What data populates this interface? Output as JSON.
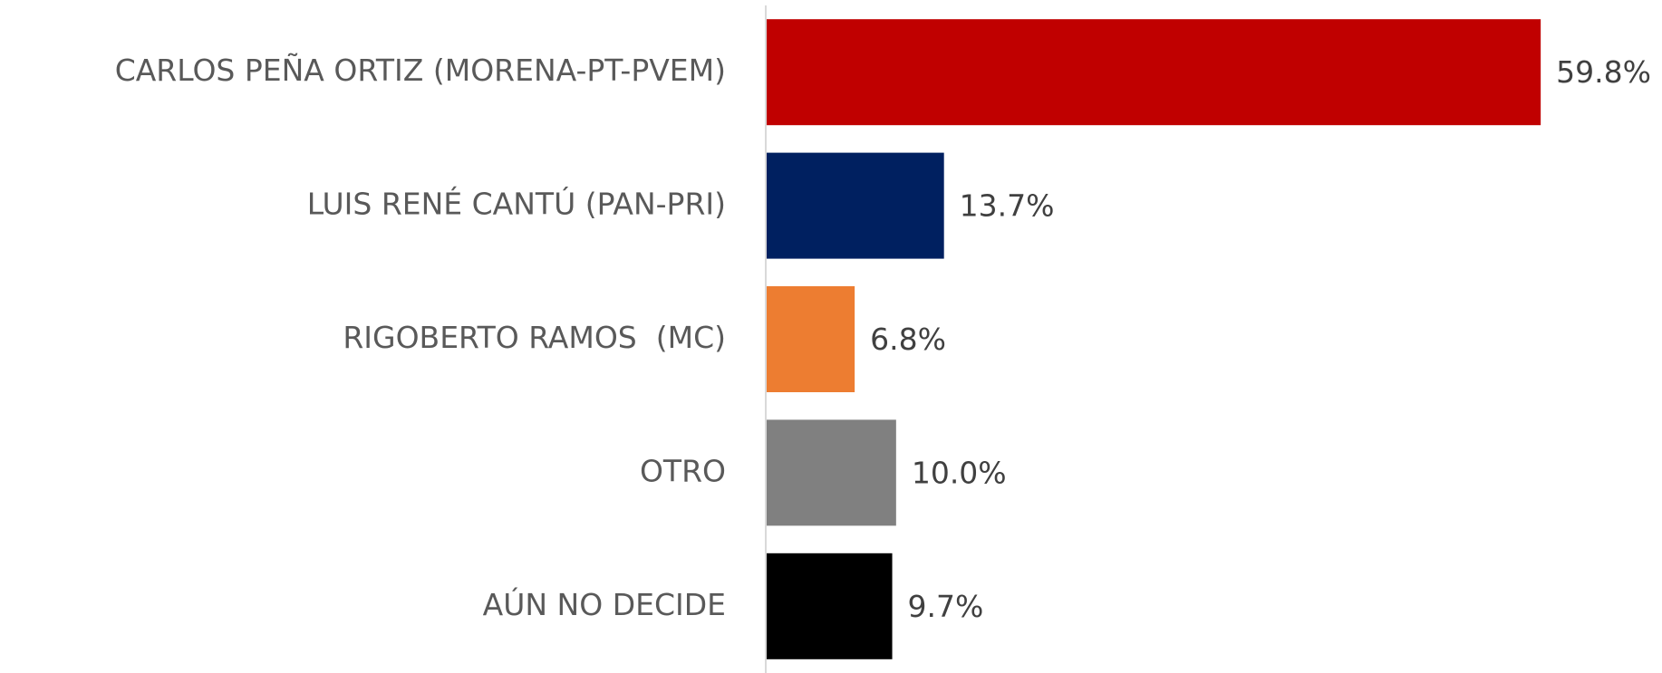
{
  "chart_data": {
    "type": "bar",
    "orientation": "horizontal",
    "categories": [
      "CARLOS PEÑA ORTIZ (MORENA-PT-PVEM)",
      "LUIS RENÉ CANTÚ (PAN-PRI)",
      "RIGOBERTO RAMOS  (MC)",
      "OTRO",
      "AÚN NO DECIDE"
    ],
    "values": [
      59.8,
      13.7,
      6.8,
      10.0,
      9.7
    ],
    "value_labels": [
      "59.8%",
      "13.7%",
      "6.8%",
      "10.0%",
      "9.7%"
    ],
    "colors": [
      "#c00000",
      "#002060",
      "#ed7d31",
      "#808080",
      "#000000"
    ],
    "xlim": [
      0,
      60
    ]
  }
}
